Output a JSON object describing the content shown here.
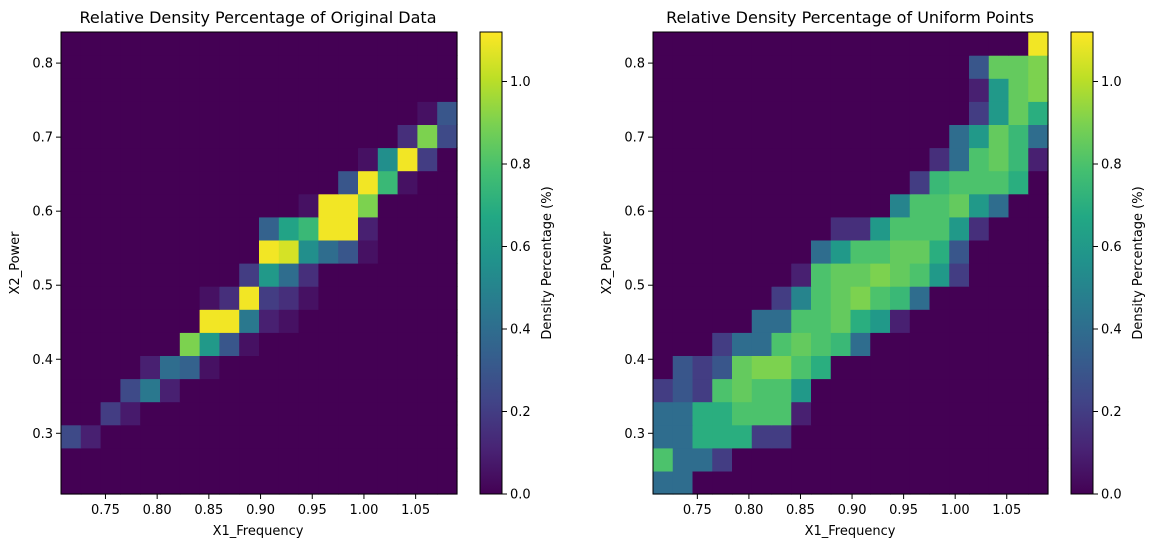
{
  "chart_data": [
    {
      "type": "heatmap",
      "title": "Relative Density Percentage of Original Data",
      "xlabel": "X1_Frequency",
      "ylabel": "X2_Power",
      "colorbar_label": "Density Percentage (%)",
      "colormap": "viridis",
      "xlim": [
        0.707,
        1.09
      ],
      "ylim": [
        0.218,
        0.842
      ],
      "clim": [
        0,
        1.12
      ],
      "nx": 20,
      "ny": 20,
      "x_ticks": [
        "0.75",
        "0.80",
        "0.85",
        "0.90",
        "0.95",
        "1.00",
        "1.05"
      ],
      "x_tick_values": [
        0.75,
        0.8,
        0.85,
        0.9,
        0.95,
        1.0,
        1.05
      ],
      "y_ticks": [
        "0.3",
        "0.4",
        "0.5",
        "0.6",
        "0.7",
        "0.8"
      ],
      "y_tick_values": [
        0.3,
        0.4,
        0.5,
        0.6,
        0.7,
        0.8
      ],
      "colorbar_ticks": [
        "0.0",
        "0.2",
        "0.4",
        "0.6",
        "0.8",
        "1.0"
      ],
      "colorbar_tick_values": [
        0.0,
        0.2,
        0.4,
        0.6,
        0.8,
        1.0
      ],
      "grid": false,
      "values": [
        [
          0,
          0,
          0,
          0,
          0,
          0,
          0,
          0,
          0,
          0,
          0,
          0,
          0,
          0,
          0,
          0,
          0,
          0,
          0,
          0
        ],
        [
          0,
          0,
          0,
          0,
          0,
          0,
          0,
          0,
          0,
          0,
          0,
          0,
          0,
          0,
          0,
          0,
          0,
          0,
          0,
          0
        ],
        [
          0.25,
          0.1,
          0,
          0,
          0,
          0,
          0,
          0,
          0,
          0,
          0,
          0,
          0,
          0,
          0,
          0,
          0,
          0,
          0,
          0
        ],
        [
          0,
          0,
          0.2,
          0.08,
          0,
          0,
          0,
          0,
          0,
          0,
          0,
          0,
          0,
          0,
          0,
          0,
          0,
          0,
          0,
          0
        ],
        [
          0,
          0,
          0,
          0.25,
          0.45,
          0.1,
          0,
          0,
          0,
          0,
          0,
          0,
          0,
          0,
          0,
          0,
          0,
          0,
          0,
          0
        ],
        [
          0,
          0,
          0,
          0,
          0.1,
          0.4,
          0.35,
          0.05,
          0,
          0,
          0,
          0,
          0,
          0,
          0,
          0,
          0,
          0,
          0,
          0
        ],
        [
          0,
          0,
          0,
          0,
          0,
          0,
          0.9,
          0.6,
          0.3,
          0.05,
          0,
          0,
          0,
          0,
          0,
          0,
          0,
          0,
          0,
          0
        ],
        [
          0,
          0,
          0,
          0,
          0,
          0,
          0,
          1.1,
          1.1,
          0.45,
          0.1,
          0.05,
          0,
          0,
          0,
          0,
          0,
          0,
          0,
          0
        ],
        [
          0,
          0,
          0,
          0,
          0,
          0,
          0,
          0.05,
          0.15,
          1.1,
          0.2,
          0.15,
          0.05,
          0,
          0,
          0,
          0,
          0,
          0,
          0
        ],
        [
          0,
          0,
          0,
          0,
          0,
          0,
          0,
          0,
          0,
          0.2,
          0.6,
          0.4,
          0.15,
          0,
          0,
          0,
          0,
          0,
          0,
          0
        ],
        [
          0,
          0,
          0,
          0,
          0,
          0,
          0,
          0,
          0,
          0,
          1.1,
          1.05,
          0.55,
          0.4,
          0.3,
          0.05,
          0,
          0,
          0,
          0
        ],
        [
          0,
          0,
          0,
          0,
          0,
          0,
          0,
          0,
          0,
          0,
          0.35,
          0.65,
          0.75,
          1.1,
          1.1,
          0.1,
          0,
          0,
          0,
          0
        ],
        [
          0,
          0,
          0,
          0,
          0,
          0,
          0,
          0,
          0,
          0,
          0,
          0,
          0.05,
          1.1,
          1.1,
          0.9,
          0,
          0,
          0,
          0
        ],
        [
          0,
          0,
          0,
          0,
          0,
          0,
          0,
          0,
          0,
          0,
          0,
          0,
          0,
          0,
          0.3,
          1.1,
          0.75,
          0.05,
          0,
          0
        ],
        [
          0,
          0,
          0,
          0,
          0,
          0,
          0,
          0,
          0,
          0,
          0,
          0,
          0,
          0,
          0,
          0.05,
          0.55,
          1.1,
          0.2,
          0
        ],
        [
          0,
          0,
          0,
          0,
          0,
          0,
          0,
          0,
          0,
          0,
          0,
          0,
          0,
          0,
          0,
          0,
          0,
          0.15,
          0.9,
          0.25
        ],
        [
          0,
          0,
          0,
          0,
          0,
          0,
          0,
          0,
          0,
          0,
          0,
          0,
          0,
          0,
          0,
          0,
          0,
          0,
          0.05,
          0.3
        ],
        [
          0,
          0,
          0,
          0,
          0,
          0,
          0,
          0,
          0,
          0,
          0,
          0,
          0,
          0,
          0,
          0,
          0,
          0,
          0,
          0
        ],
        [
          0,
          0,
          0,
          0,
          0,
          0,
          0,
          0,
          0,
          0,
          0,
          0,
          0,
          0,
          0,
          0,
          0,
          0,
          0,
          0
        ],
        [
          0,
          0,
          0,
          0,
          0,
          0,
          0,
          0,
          0,
          0,
          0,
          0,
          0,
          0,
          0,
          0,
          0,
          0,
          0,
          0
        ]
      ]
    },
    {
      "type": "heatmap",
      "title": "Relative Density Percentage of Uniform Points",
      "xlabel": "X1_Frequency",
      "ylabel": "X2_Power",
      "colorbar_label": "Density Percentage (%)",
      "colormap": "viridis",
      "xlim": [
        0.707,
        1.09
      ],
      "ylim": [
        0.218,
        0.842
      ],
      "clim": [
        0,
        1.12
      ],
      "nx": 20,
      "ny": 20,
      "x_ticks": [
        "0.75",
        "0.80",
        "0.85",
        "0.90",
        "0.95",
        "1.00",
        "1.05"
      ],
      "x_tick_values": [
        0.75,
        0.8,
        0.85,
        0.9,
        0.95,
        1.0,
        1.05
      ],
      "y_ticks": [
        "0.3",
        "0.4",
        "0.5",
        "0.6",
        "0.7",
        "0.8"
      ],
      "y_tick_values": [
        0.3,
        0.4,
        0.5,
        0.6,
        0.7,
        0.8
      ],
      "colorbar_ticks": [
        "0.0",
        "0.2",
        "0.4",
        "0.6",
        "0.8",
        "1.0"
      ],
      "colorbar_tick_values": [
        0.0,
        0.2,
        0.4,
        0.6,
        0.8,
        1.0
      ],
      "grid": false,
      "values": [
        [
          0.4,
          0.4,
          0,
          0,
          0,
          0,
          0,
          0,
          0,
          0,
          0,
          0,
          0,
          0,
          0,
          0,
          0,
          0,
          0,
          0
        ],
        [
          0.8,
          0.4,
          0.4,
          0.2,
          0,
          0,
          0,
          0,
          0,
          0,
          0,
          0,
          0,
          0,
          0,
          0,
          0,
          0,
          0,
          0
        ],
        [
          0.4,
          0.4,
          0.7,
          0.7,
          0.7,
          0.2,
          0.2,
          0,
          0,
          0,
          0,
          0,
          0,
          0,
          0,
          0,
          0,
          0,
          0,
          0
        ],
        [
          0.4,
          0.4,
          0.7,
          0.7,
          0.8,
          0.8,
          0.8,
          0.1,
          0,
          0,
          0,
          0,
          0,
          0,
          0,
          0,
          0,
          0,
          0,
          0
        ],
        [
          0.2,
          0.3,
          0.2,
          0.8,
          0.85,
          0.8,
          0.8,
          0.6,
          0,
          0,
          0,
          0,
          0,
          0,
          0,
          0,
          0,
          0,
          0,
          0
        ],
        [
          0,
          0.3,
          0.2,
          0.3,
          0.85,
          0.9,
          0.9,
          0.8,
          0.7,
          0,
          0,
          0,
          0,
          0,
          0,
          0,
          0,
          0,
          0,
          0
        ],
        [
          0,
          0,
          0,
          0.2,
          0.4,
          0.4,
          0.8,
          0.85,
          0.8,
          0.75,
          0.4,
          0,
          0,
          0,
          0,
          0,
          0,
          0,
          0,
          0
        ],
        [
          0,
          0,
          0,
          0,
          0,
          0.4,
          0.4,
          0.8,
          0.8,
          0.85,
          0.7,
          0.6,
          0.1,
          0,
          0,
          0,
          0,
          0,
          0,
          0
        ],
        [
          0,
          0,
          0,
          0,
          0,
          0,
          0.2,
          0.5,
          0.8,
          0.85,
          0.9,
          0.8,
          0.75,
          0.4,
          0,
          0,
          0,
          0,
          0,
          0
        ],
        [
          0,
          0,
          0,
          0,
          0,
          0,
          0,
          0.1,
          0.8,
          0.85,
          0.85,
          0.9,
          0.85,
          0.8,
          0.6,
          0.2,
          0,
          0,
          0,
          0
        ],
        [
          0,
          0,
          0,
          0,
          0,
          0,
          0,
          0,
          0.4,
          0.6,
          0.8,
          0.8,
          0.85,
          0.85,
          0.7,
          0.3,
          0,
          0,
          0,
          0
        ],
        [
          0,
          0,
          0,
          0,
          0,
          0,
          0,
          0,
          0,
          0.15,
          0.15,
          0.6,
          0.8,
          0.8,
          0.8,
          0.6,
          0.15,
          0,
          0,
          0
        ],
        [
          0,
          0,
          0,
          0,
          0,
          0,
          0,
          0,
          0,
          0,
          0,
          0,
          0.5,
          0.8,
          0.8,
          0.85,
          0.6,
          0.4,
          0,
          0
        ],
        [
          0,
          0,
          0,
          0,
          0,
          0,
          0,
          0,
          0,
          0,
          0,
          0,
          0,
          0.2,
          0.75,
          0.8,
          0.8,
          0.8,
          0.7,
          0
        ],
        [
          0,
          0,
          0,
          0,
          0,
          0,
          0,
          0,
          0,
          0,
          0,
          0,
          0,
          0,
          0.15,
          0.4,
          0.8,
          0.85,
          0.75,
          0.1
        ],
        [
          0,
          0,
          0,
          0,
          0,
          0,
          0,
          0,
          0,
          0,
          0,
          0,
          0,
          0,
          0,
          0.4,
          0.6,
          0.85,
          0.75,
          0.4
        ],
        [
          0,
          0,
          0,
          0,
          0,
          0,
          0,
          0,
          0,
          0,
          0,
          0,
          0,
          0,
          0,
          0,
          0.2,
          0.6,
          0.85,
          0.7
        ],
        [
          0,
          0,
          0,
          0,
          0,
          0,
          0,
          0,
          0,
          0,
          0,
          0,
          0,
          0,
          0,
          0,
          0.1,
          0.6,
          0.85,
          0.9
        ],
        [
          0,
          0,
          0,
          0,
          0,
          0,
          0,
          0,
          0,
          0,
          0,
          0,
          0,
          0,
          0,
          0,
          0.3,
          0.85,
          0.85,
          0.9
        ],
        [
          0,
          0,
          0,
          0,
          0,
          0,
          0,
          0,
          0,
          0,
          0,
          0,
          0,
          0,
          0,
          0,
          0,
          0,
          0,
          1.1
        ]
      ]
    }
  ]
}
